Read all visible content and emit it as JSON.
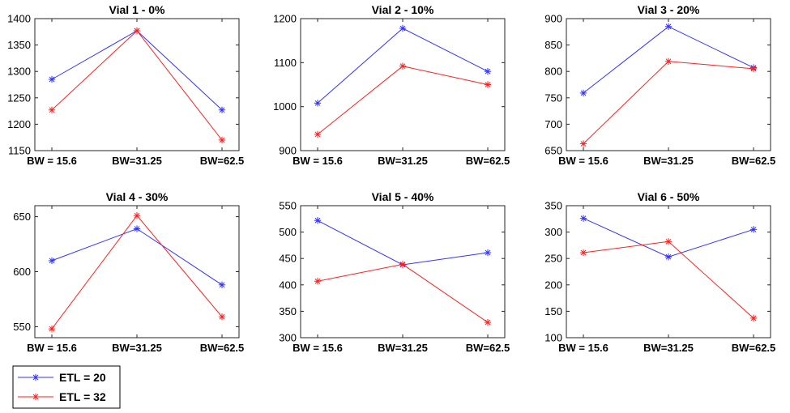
{
  "chart_data": [
    {
      "type": "line",
      "title": "Vial 1 - 0%",
      "categories": [
        "BW = 15.6",
        "BW=31.25",
        "BW=62.5"
      ],
      "ylim": [
        1150,
        1400
      ],
      "yticks": [
        1150,
        1200,
        1250,
        1300,
        1350,
        1400
      ],
      "series": [
        {
          "name": "ETL = 20",
          "color": "#3333ff",
          "values": [
            1285,
            1377,
            1227
          ]
        },
        {
          "name": "ETL = 32",
          "color": "#ff2020",
          "values": [
            1227,
            1377,
            1170
          ]
        }
      ]
    },
    {
      "type": "line",
      "title": "Vial 2 - 10%",
      "categories": [
        "BW = 15.6",
        "BW=31.25",
        "BW=62.5"
      ],
      "ylim": [
        900,
        1200
      ],
      "yticks": [
        900,
        1000,
        1100,
        1200
      ],
      "series": [
        {
          "name": "ETL = 20",
          "color": "#3333ff",
          "values": [
            1008,
            1178,
            1080
          ]
        },
        {
          "name": "ETL = 32",
          "color": "#ff2020",
          "values": [
            937,
            1092,
            1050
          ]
        }
      ]
    },
    {
      "type": "line",
      "title": "Vial 3 - 20%",
      "categories": [
        "BW = 15.6",
        "BW=31.25",
        "BW=62.5"
      ],
      "ylim": [
        650,
        900
      ],
      "yticks": [
        650,
        700,
        750,
        800,
        850,
        900
      ],
      "series": [
        {
          "name": "ETL = 20",
          "color": "#3333ff",
          "values": [
            759,
            885,
            807
          ]
        },
        {
          "name": "ETL = 32",
          "color": "#ff2020",
          "values": [
            663,
            819,
            805
          ]
        }
      ]
    },
    {
      "type": "line",
      "title": "Vial 4 - 30%",
      "categories": [
        "BW = 15.6",
        "BW=31.25",
        "BW=62.5"
      ],
      "ylim": [
        540,
        660
      ],
      "yticks": [
        550,
        600,
        650
      ],
      "series": [
        {
          "name": "ETL = 20",
          "color": "#3333ff",
          "values": [
            610,
            639,
            588
          ]
        },
        {
          "name": "ETL = 32",
          "color": "#ff2020",
          "values": [
            548,
            651,
            559
          ]
        }
      ]
    },
    {
      "type": "line",
      "title": "Vial 5 - 40%",
      "categories": [
        "BW = 15.6",
        "BW=31.25",
        "BW=62.5"
      ],
      "ylim": [
        300,
        550
      ],
      "yticks": [
        300,
        350,
        400,
        450,
        500,
        550
      ],
      "series": [
        {
          "name": "ETL = 20",
          "color": "#3333ff",
          "values": [
            522,
            438,
            461
          ]
        },
        {
          "name": "ETL = 32",
          "color": "#ff2020",
          "values": [
            407,
            439,
            329
          ]
        }
      ]
    },
    {
      "type": "line",
      "title": "Vial 6 - 50%",
      "categories": [
        "BW = 15.6",
        "BW=31.25",
        "BW=62.5"
      ],
      "ylim": [
        100,
        350
      ],
      "yticks": [
        100,
        150,
        200,
        250,
        300,
        350
      ],
      "series": [
        {
          "name": "ETL = 20",
          "color": "#3333ff",
          "values": [
            326,
            253,
            305
          ]
        },
        {
          "name": "ETL = 32",
          "color": "#ff2020",
          "values": [
            261,
            282,
            137
          ]
        }
      ]
    }
  ],
  "legend": {
    "placement": "bottom-left",
    "entries": [
      {
        "label": "ETL = 20",
        "color": "#3333ff"
      },
      {
        "label": "ETL = 32",
        "color": "#ff2020"
      }
    ]
  }
}
